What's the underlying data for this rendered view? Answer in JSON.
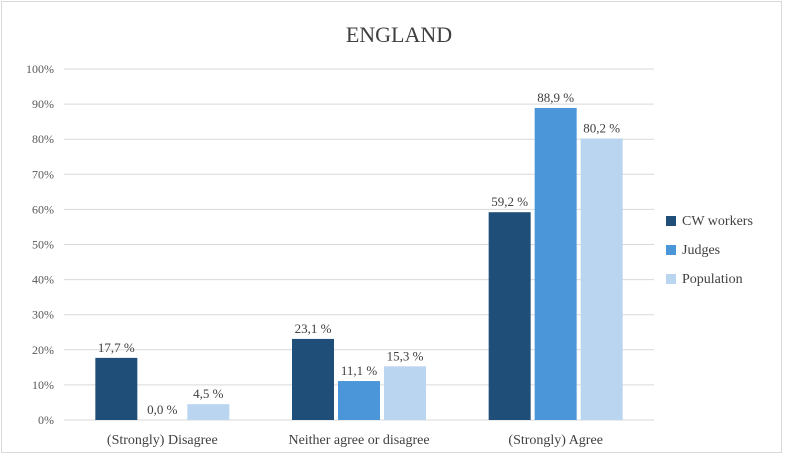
{
  "chart_data": {
    "type": "bar",
    "title": "ENGLAND",
    "categories": [
      "(Strongly) Disagree",
      "Neither agree or disagree",
      "(Strongly) Agree"
    ],
    "series": [
      {
        "name": "CW workers",
        "color": "#1f4e79",
        "values": [
          17.7,
          23.1,
          59.2
        ],
        "labels": [
          "17,7 %",
          "23,1 %",
          "59,2 %"
        ]
      },
      {
        "name": "Judges",
        "color": "#4a96d9",
        "values": [
          0.0,
          11.1,
          88.9
        ],
        "labels": [
          "0,0 %",
          "11,1 %",
          "88,9 %"
        ]
      },
      {
        "name": "Population",
        "color": "#b9d5ef",
        "values": [
          4.5,
          15.3,
          80.2
        ],
        "labels": [
          "4,5 %",
          "15,3 %",
          "80,2 %"
        ]
      }
    ],
    "ylim": [
      0,
      100
    ],
    "yticks": [
      "0%",
      "10%",
      "20%",
      "30%",
      "40%",
      "50%",
      "60%",
      "70%",
      "80%",
      "90%",
      "100%"
    ],
    "grid": true,
    "legend_position": "right"
  }
}
